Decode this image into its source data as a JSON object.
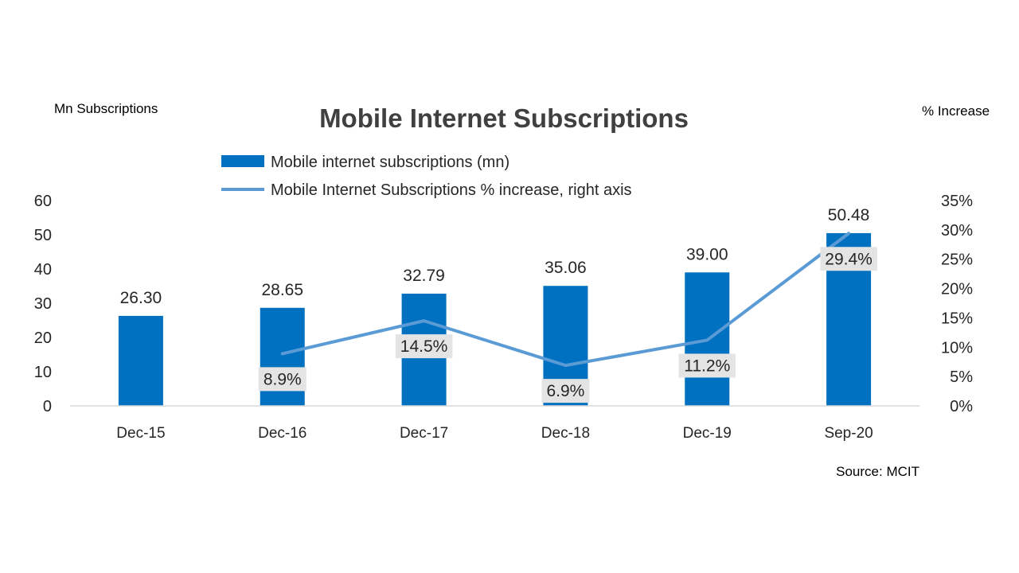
{
  "chart_data": {
    "type": "bar",
    "title": "Mobile Internet Subscriptions",
    "ylabel_left": "Mn Subscriptions",
    "ylabel_right": "% Increase",
    "source": "Source: MCIT",
    "categories": [
      "Dec-15",
      "Dec-16",
      "Dec-17",
      "Dec-18",
      "Dec-19",
      "Sep-20"
    ],
    "series": [
      {
        "name": "Mobile internet subscriptions (mn)",
        "type": "bar",
        "axis": "left",
        "values": [
          26.3,
          28.65,
          32.79,
          35.06,
          39.0,
          50.48
        ],
        "labels": [
          "26.30",
          "28.65",
          "32.79",
          "35.06",
          "39.00",
          "50.48"
        ]
      },
      {
        "name": "Mobile Internet Subscriptions % increase, right axis",
        "type": "line",
        "axis": "right",
        "values": [
          null,
          8.9,
          14.5,
          6.9,
          11.2,
          29.4
        ],
        "labels": [
          "",
          "8.9%",
          "14.5%",
          "6.9%",
          "11.2%",
          "29.4%"
        ]
      }
    ],
    "y_left": {
      "min": 0,
      "max": 60,
      "ticks": [
        0,
        10,
        20,
        30,
        40,
        50,
        60
      ],
      "tick_labels": [
        "0",
        "10",
        "20",
        "30",
        "40",
        "50",
        "60"
      ]
    },
    "y_right": {
      "min": 0,
      "max": 35,
      "ticks": [
        0,
        5,
        10,
        15,
        20,
        25,
        30,
        35
      ],
      "tick_labels": [
        "0%",
        "5%",
        "10%",
        "15%",
        "20%",
        "25%",
        "30%",
        "35%"
      ]
    },
    "grid": false,
    "legend_position": "top-center",
    "colors": {
      "bar": "#0070c0",
      "line": "#5b9bd5",
      "label_box": "#e4e4e4",
      "text": "#262626",
      "axis": "#d9d9d9"
    }
  }
}
